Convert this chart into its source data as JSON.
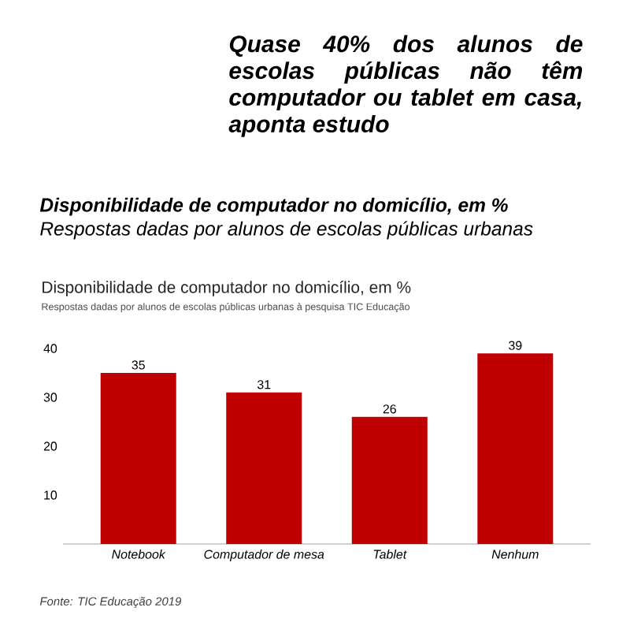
{
  "chart_data": {
    "type": "bar",
    "title": "Disponibilidade de computador no domicílio, em %",
    "subtitle": "Respostas dadas por alunos de escolas públicas urbanas à pesquisa TIC Educação",
    "categories": [
      "Notebook",
      "Computador de mesa",
      "Tablet",
      "Nenhum"
    ],
    "values": [
      35,
      31,
      26,
      39
    ],
    "color": "#c00000",
    "ylim": [
      0,
      40
    ],
    "yticks": [
      10,
      20,
      30,
      40
    ],
    "data_labels": true,
    "annotations": [
      "Quase 40% dos alunos de escolas públicas não têm computador ou tablet em casa, aponta estudo",
      "Disponibilidade de computador no domicílio, em %",
      "Respostas dadas por alunos de escolas públicas urbanas",
      "Fonte: TIC Educação 2019"
    ]
  }
}
